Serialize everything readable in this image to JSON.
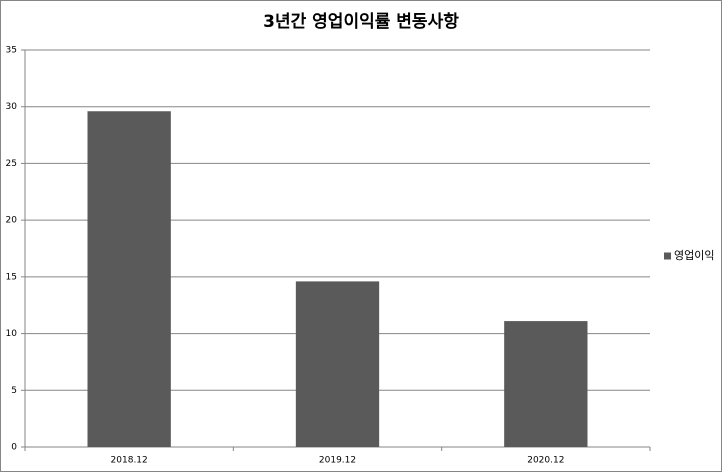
{
  "chart_data": {
    "type": "bar",
    "title": "3년간 영업이익률 변동사항",
    "categories": [
      "2018.12",
      "2019.12",
      "2020.12"
    ],
    "series": [
      {
        "name": "영업이익",
        "color": "#5a5a5a",
        "values": [
          29.6,
          14.6,
          11.1
        ]
      }
    ],
    "ylim": [
      0,
      35
    ],
    "yticks": [
      0,
      5,
      10,
      15,
      20,
      25,
      30,
      35
    ],
    "grid": true,
    "legend": "right"
  }
}
